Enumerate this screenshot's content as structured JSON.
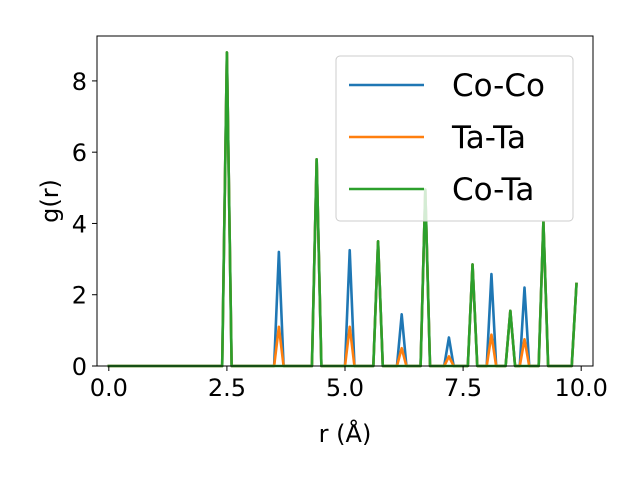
{
  "chart_data": {
    "type": "line",
    "xlabel": "r (Å)",
    "ylabel": "g(r)",
    "xlim": [
      -0.25,
      10.25
    ],
    "ylim": [
      0,
      9.26
    ],
    "xticks": [
      0.0,
      2.5,
      5.0,
      7.5,
      10.0
    ],
    "xtick_labels": [
      "0.0",
      "2.5",
      "5.0",
      "7.5",
      "10.0"
    ],
    "yticks": [
      0,
      2,
      4,
      6,
      8
    ],
    "ytick_labels": [
      "0",
      "2",
      "4",
      "6",
      "8"
    ],
    "grid": false,
    "legend_position": "top-right",
    "series": [
      {
        "name": "Co-Co",
        "color": "#1f77b4",
        "x": [
          0.0,
          2.4,
          2.5,
          2.6,
          3.5,
          3.6,
          3.7,
          4.3,
          4.4,
          4.5,
          5.0,
          5.1,
          5.2,
          5.6,
          5.7,
          5.8,
          6.1,
          6.2,
          6.3,
          6.6,
          6.7,
          6.8,
          7.1,
          7.2,
          7.3,
          7.6,
          7.7,
          7.8,
          8.0,
          8.1,
          8.2,
          8.4,
          8.5,
          8.6,
          8.7,
          8.8,
          8.9,
          9.1,
          9.2,
          9.3,
          9.8,
          9.9
        ],
        "y": [
          0,
          0,
          8.8,
          0,
          0,
          3.2,
          0,
          0,
          5.8,
          0,
          0,
          3.25,
          0,
          0,
          3.5,
          0,
          0,
          1.45,
          0,
          0,
          4.95,
          0,
          0,
          0.8,
          0,
          0,
          2.85,
          0,
          0,
          2.58,
          0,
          0,
          1.55,
          0,
          0,
          2.2,
          0,
          0,
          4.05,
          0,
          0,
          2.3
        ]
      },
      {
        "name": "Ta-Ta",
        "color": "#ff7f0e",
        "x": [
          0.0,
          2.4,
          2.5,
          2.6,
          3.5,
          3.6,
          3.7,
          4.3,
          4.4,
          4.5,
          5.0,
          5.1,
          5.2,
          5.6,
          5.7,
          5.8,
          6.1,
          6.2,
          6.3,
          6.6,
          6.7,
          6.8,
          7.1,
          7.2,
          7.3,
          7.6,
          7.7,
          7.8,
          8.0,
          8.1,
          8.2,
          8.4,
          8.5,
          8.6,
          8.7,
          8.8,
          8.9,
          9.1,
          9.2,
          9.3,
          9.8,
          9.9
        ],
        "y": [
          0,
          0,
          8.8,
          0,
          0,
          1.1,
          0,
          0,
          5.8,
          0,
          0,
          1.1,
          0,
          0,
          3.5,
          0,
          0,
          0.5,
          0,
          0,
          4.95,
          0,
          0,
          0.27,
          0,
          0,
          2.85,
          0,
          0,
          0.88,
          0,
          0,
          1.55,
          0,
          0,
          0.75,
          0,
          0,
          4.05,
          0,
          0,
          2.3
        ]
      },
      {
        "name": "Co-Ta",
        "color": "#2ca02c",
        "x": [
          0.0,
          2.4,
          2.5,
          2.6,
          4.3,
          4.4,
          4.5,
          5.6,
          5.7,
          5.8,
          6.6,
          6.7,
          6.8,
          7.6,
          7.7,
          7.8,
          8.4,
          8.5,
          8.6,
          9.1,
          9.2,
          9.3,
          9.8,
          9.9
        ],
        "y": [
          0,
          0,
          8.8,
          0,
          0,
          5.8,
          0,
          0,
          3.5,
          0,
          0,
          4.95,
          0,
          0,
          2.85,
          0,
          0,
          1.55,
          0,
          0,
          4.05,
          0,
          0,
          2.3
        ]
      }
    ]
  }
}
